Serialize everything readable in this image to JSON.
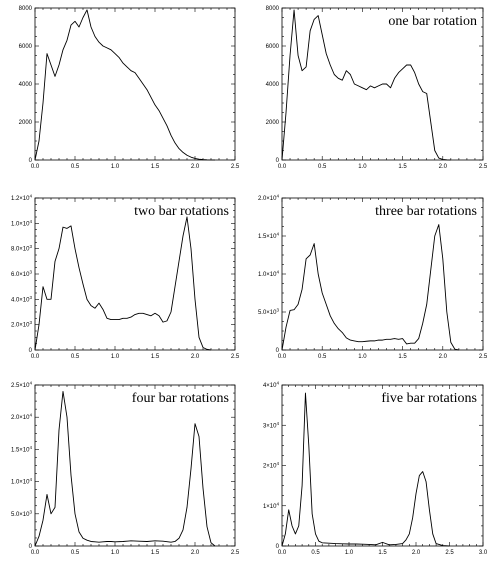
{
  "chart_data": [
    {
      "type": "line",
      "title": "",
      "xlim": [
        0,
        2.5
      ],
      "ylim": [
        0,
        8000
      ],
      "xticks": [
        "0.0",
        "0.5",
        "1.0",
        "1.5",
        "2.0",
        "2.5"
      ],
      "yticks": [
        {
          "v": 0,
          "m": "0",
          "e": ""
        },
        {
          "v": 2000,
          "m": "2000",
          "e": ""
        },
        {
          "v": 4000,
          "m": "4000",
          "e": ""
        },
        {
          "v": 6000,
          "m": "6000",
          "e": ""
        },
        {
          "v": 8000,
          "m": "8000",
          "e": ""
        }
      ],
      "x": [
        0.0,
        0.05,
        0.1,
        0.15,
        0.2,
        0.25,
        0.3,
        0.35,
        0.4,
        0.45,
        0.5,
        0.55,
        0.6,
        0.65,
        0.7,
        0.75,
        0.8,
        0.85,
        0.9,
        0.95,
        1.0,
        1.05,
        1.1,
        1.15,
        1.2,
        1.25,
        1.3,
        1.35,
        1.4,
        1.45,
        1.5,
        1.55,
        1.6,
        1.65,
        1.7,
        1.75,
        1.8,
        1.85,
        1.9,
        1.95,
        2.0,
        2.05,
        2.1,
        2.15,
        2.2,
        2.25
      ],
      "y": [
        0,
        1000,
        3000,
        5600,
        5000,
        4400,
        5000,
        5800,
        6300,
        7100,
        7300,
        7000,
        7500,
        7900,
        7000,
        6500,
        6200,
        6000,
        5900,
        5800,
        5600,
        5400,
        5100,
        4900,
        4700,
        4600,
        4300,
        4000,
        3700,
        3300,
        2900,
        2600,
        2200,
        1800,
        1300,
        900,
        600,
        400,
        250,
        150,
        80,
        40,
        20,
        10,
        5,
        0
      ]
    },
    {
      "type": "line",
      "title": "one bar rotation",
      "xlim": [
        0,
        2.5
      ],
      "ylim": [
        0,
        8000
      ],
      "xticks": [
        "0.0",
        "0.5",
        "1.0",
        "1.5",
        "2.0",
        "2.5"
      ],
      "yticks": [
        {
          "v": 0,
          "m": "0",
          "e": ""
        },
        {
          "v": 2000,
          "m": "2000",
          "e": ""
        },
        {
          "v": 4000,
          "m": "4000",
          "e": ""
        },
        {
          "v": 6000,
          "m": "6000",
          "e": ""
        },
        {
          "v": 8000,
          "m": "8000",
          "e": ""
        }
      ],
      "x": [
        0.0,
        0.05,
        0.1,
        0.15,
        0.2,
        0.25,
        0.3,
        0.35,
        0.4,
        0.45,
        0.5,
        0.55,
        0.6,
        0.65,
        0.7,
        0.75,
        0.8,
        0.85,
        0.9,
        0.95,
        1.0,
        1.05,
        1.1,
        1.15,
        1.2,
        1.25,
        1.3,
        1.35,
        1.4,
        1.45,
        1.5,
        1.55,
        1.6,
        1.65,
        1.7,
        1.75,
        1.8,
        1.85,
        1.9,
        1.95,
        2.0,
        2.05,
        2.1
      ],
      "y": [
        0,
        2500,
        5500,
        7900,
        5500,
        4700,
        4900,
        6800,
        7400,
        7600,
        6600,
        5600,
        5000,
        4500,
        4300,
        4200,
        4700,
        4500,
        4000,
        3900,
        3800,
        3700,
        3900,
        3800,
        3900,
        4000,
        4000,
        3800,
        4300,
        4600,
        4800,
        5000,
        5000,
        4600,
        4000,
        3600,
        3500,
        2000,
        500,
        100,
        30,
        10,
        0
      ]
    },
    {
      "type": "line",
      "title": "two bar rotations",
      "xlim": [
        0,
        2.5
      ],
      "ylim": [
        0,
        12000
      ],
      "xticks": [
        "0.0",
        "0.5",
        "1.0",
        "1.5",
        "2.0",
        "2.5"
      ],
      "yticks": [
        {
          "v": 0,
          "m": "0",
          "e": ""
        },
        {
          "v": 2000,
          "m": "2.0×10",
          "e": "3"
        },
        {
          "v": 4000,
          "m": "4.0×10",
          "e": "3"
        },
        {
          "v": 6000,
          "m": "6.0×10",
          "e": "3"
        },
        {
          "v": 8000,
          "m": "8.0×10",
          "e": "3"
        },
        {
          "v": 10000,
          "m": "1.0×10",
          "e": "4"
        },
        {
          "v": 12000,
          "m": "1.2×10",
          "e": "4"
        }
      ],
      "x": [
        0.0,
        0.05,
        0.1,
        0.15,
        0.2,
        0.25,
        0.3,
        0.35,
        0.4,
        0.45,
        0.5,
        0.55,
        0.6,
        0.65,
        0.7,
        0.75,
        0.8,
        0.85,
        0.9,
        0.95,
        1.0,
        1.05,
        1.1,
        1.15,
        1.2,
        1.25,
        1.3,
        1.35,
        1.4,
        1.45,
        1.5,
        1.55,
        1.6,
        1.65,
        1.7,
        1.75,
        1.8,
        1.85,
        1.9,
        1.95,
        2.0,
        2.05,
        2.1,
        2.15,
        2.2
      ],
      "y": [
        0,
        2000,
        5000,
        4000,
        4000,
        7000,
        8000,
        9700,
        9600,
        9800,
        8000,
        6500,
        5200,
        4000,
        3500,
        3300,
        3700,
        3200,
        2500,
        2400,
        2400,
        2400,
        2500,
        2500,
        2600,
        2800,
        2900,
        2900,
        2800,
        2700,
        2900,
        2700,
        2200,
        2300,
        3000,
        5000,
        7000,
        9000,
        10500,
        8000,
        4000,
        1000,
        200,
        50,
        0
      ]
    },
    {
      "type": "line",
      "title": "three bar rotations",
      "xlim": [
        0,
        2.5
      ],
      "ylim": [
        0,
        20000
      ],
      "xticks": [
        "0.0",
        "0.5",
        "1.0",
        "1.5",
        "2.0",
        "2.5"
      ],
      "yticks": [
        {
          "v": 0,
          "m": "0",
          "e": ""
        },
        {
          "v": 5000,
          "m": "5.0×10",
          "e": "3"
        },
        {
          "v": 10000,
          "m": "1.0×10",
          "e": "4"
        },
        {
          "v": 15000,
          "m": "1.5×10",
          "e": "4"
        },
        {
          "v": 20000,
          "m": "2.0×10",
          "e": "4"
        }
      ],
      "x": [
        0.0,
        0.05,
        0.1,
        0.15,
        0.2,
        0.25,
        0.3,
        0.35,
        0.4,
        0.45,
        0.5,
        0.55,
        0.6,
        0.65,
        0.7,
        0.75,
        0.8,
        0.85,
        0.9,
        0.95,
        1.0,
        1.05,
        1.1,
        1.15,
        1.2,
        1.25,
        1.3,
        1.35,
        1.4,
        1.45,
        1.5,
        1.55,
        1.6,
        1.65,
        1.7,
        1.75,
        1.8,
        1.85,
        1.9,
        1.95,
        2.0,
        2.05,
        2.1,
        2.15,
        2.2
      ],
      "y": [
        0,
        3000,
        5200,
        5300,
        6000,
        8000,
        12000,
        12500,
        14000,
        10000,
        7500,
        6000,
        4500,
        3500,
        2800,
        2300,
        1600,
        1300,
        1200,
        1100,
        1100,
        1150,
        1200,
        1200,
        1300,
        1300,
        1400,
        1400,
        1500,
        1400,
        1500,
        800,
        900,
        900,
        1500,
        3500,
        6000,
        10500,
        15000,
        16500,
        12000,
        5000,
        1000,
        100,
        0
      ]
    },
    {
      "type": "line",
      "title": "four bar rotations",
      "xlim": [
        0,
        2.5
      ],
      "ylim": [
        0,
        25000
      ],
      "xticks": [
        "0.0",
        "0.5",
        "1.0",
        "1.5",
        "2.0",
        "2.5"
      ],
      "yticks": [
        {
          "v": 0,
          "m": "0",
          "e": ""
        },
        {
          "v": 5000,
          "m": "5.0×10",
          "e": "3"
        },
        {
          "v": 10000,
          "m": "1.0×10",
          "e": "4"
        },
        {
          "v": 15000,
          "m": "1.5×10",
          "e": "4"
        },
        {
          "v": 20000,
          "m": "2.0×10",
          "e": "4"
        },
        {
          "v": 25000,
          "m": "2.5×10",
          "e": "4"
        }
      ],
      "x": [
        0.0,
        0.05,
        0.1,
        0.15,
        0.2,
        0.25,
        0.3,
        0.35,
        0.4,
        0.45,
        0.5,
        0.55,
        0.6,
        0.65,
        0.7,
        0.75,
        0.8,
        0.85,
        0.9,
        0.95,
        1.0,
        1.1,
        1.2,
        1.3,
        1.4,
        1.5,
        1.6,
        1.7,
        1.75,
        1.8,
        1.85,
        1.9,
        1.95,
        2.0,
        2.05,
        2.1,
        2.15,
        2.2,
        2.25
      ],
      "y": [
        0,
        1500,
        4000,
        8000,
        5000,
        6000,
        18000,
        24000,
        20000,
        11000,
        5000,
        2200,
        1200,
        900,
        700,
        650,
        600,
        650,
        700,
        700,
        650,
        700,
        800,
        750,
        700,
        800,
        750,
        600,
        700,
        1200,
        2500,
        6000,
        12000,
        19000,
        17000,
        9000,
        3000,
        500,
        0
      ]
    },
    {
      "type": "line",
      "title": "five bar rotations",
      "xlim": [
        0,
        3.0
      ],
      "ylim": [
        0,
        40000
      ],
      "xticks": [
        "0.0",
        "0.5",
        "1.0",
        "1.5",
        "2.0",
        "2.5",
        "3.0"
      ],
      "yticks": [
        {
          "v": 0,
          "m": "0",
          "e": ""
        },
        {
          "v": 10000,
          "m": "1×10",
          "e": "4"
        },
        {
          "v": 20000,
          "m": "2×10",
          "e": "4"
        },
        {
          "v": 30000,
          "m": "3×10",
          "e": "4"
        },
        {
          "v": 40000,
          "m": "4×10",
          "e": "4"
        }
      ],
      "x": [
        0.0,
        0.05,
        0.1,
        0.15,
        0.2,
        0.25,
        0.3,
        0.35,
        0.4,
        0.45,
        0.5,
        0.55,
        0.6,
        0.7,
        0.8,
        0.9,
        1.0,
        1.1,
        1.2,
        1.3,
        1.4,
        1.5,
        1.6,
        1.7,
        1.8,
        1.85,
        1.9,
        1.95,
        2.0,
        2.05,
        2.1,
        2.15,
        2.2,
        2.25,
        2.3,
        2.4,
        2.5
      ],
      "y": [
        0,
        3000,
        9000,
        5000,
        3000,
        5000,
        15000,
        38000,
        25000,
        8000,
        3000,
        1200,
        800,
        700,
        600,
        550,
        500,
        500,
        450,
        400,
        300,
        900,
        300,
        400,
        600,
        1500,
        3000,
        7000,
        13000,
        17500,
        18500,
        16000,
        9000,
        3000,
        600,
        100,
        0
      ]
    }
  ]
}
